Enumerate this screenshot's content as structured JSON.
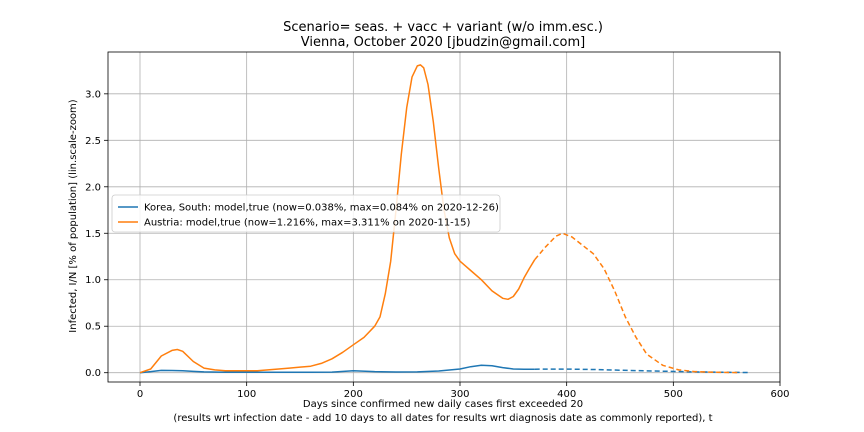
{
  "chart_data": {
    "type": "line",
    "title": "Scenario= seas. + vacc + variant (w/o imm.esc.)",
    "subtitle": "Vienna, October 2020 [jbudzin@gmail.com]",
    "xlabel": "Days since confirmed new daily cases first exceeded 20",
    "xlabel2": "(results wrt infection date - add 10 days to all dates for results wrt diagnosis date as commonly reported), t",
    "ylabel": "Infected, I/N [% of population] (lin.scale-zoom)",
    "xlim": [
      -30,
      600
    ],
    "ylim": [
      -0.1,
      3.45
    ],
    "xticks": [
      0,
      100,
      200,
      300,
      400,
      500,
      600
    ],
    "yticks": [
      0.0,
      0.5,
      1.0,
      1.5,
      2.0,
      2.5,
      3.0
    ],
    "xtick_labels": [
      "0",
      "100",
      "200",
      "300",
      "400",
      "500",
      "600"
    ],
    "ytick_labels": [
      "0.0",
      "0.5",
      "1.0",
      "1.5",
      "2.0",
      "2.5",
      "3.0"
    ],
    "grid": true,
    "legend_position": "center-left",
    "series": [
      {
        "name": "Korea, South: model,true (now=0.038%, max=0.084% on 2020-12-26)",
        "color": "#1f77b4",
        "solid": {
          "x": [
            0,
            10,
            20,
            30,
            40,
            50,
            60,
            80,
            100,
            120,
            140,
            160,
            180,
            200,
            220,
            240,
            260,
            280,
            300,
            310,
            320,
            330,
            340,
            350,
            360,
            370
          ],
          "y": [
            0.0,
            0.012,
            0.025,
            0.024,
            0.02,
            0.014,
            0.009,
            0.005,
            0.004,
            0.004,
            0.004,
            0.005,
            0.006,
            0.022,
            0.012,
            0.008,
            0.009,
            0.018,
            0.04,
            0.065,
            0.08,
            0.075,
            0.055,
            0.04,
            0.038,
            0.038
          ]
        },
        "dashed": {
          "x": [
            370,
            400,
            430,
            460,
            490,
            520,
            550,
            570
          ],
          "y": [
            0.038,
            0.039,
            0.033,
            0.024,
            0.016,
            0.009,
            0.004,
            0.002
          ]
        }
      },
      {
        "name": "Austria: model,true (now=1.216%, max=3.311% on 2020-11-15)",
        "color": "#ff7f0e",
        "solid": {
          "x": [
            0,
            10,
            20,
            30,
            35,
            40,
            50,
            60,
            70,
            80,
            90,
            100,
            110,
            120,
            130,
            140,
            150,
            160,
            170,
            180,
            190,
            200,
            210,
            220,
            225,
            230,
            235,
            240,
            245,
            250,
            255,
            260,
            263,
            266,
            270,
            275,
            280,
            285,
            290,
            295,
            300,
            305,
            310,
            320,
            330,
            340,
            345,
            350,
            355,
            360,
            365,
            370
          ],
          "y": [
            0.0,
            0.04,
            0.18,
            0.24,
            0.25,
            0.23,
            0.12,
            0.05,
            0.03,
            0.02,
            0.02,
            0.02,
            0.02,
            0.03,
            0.04,
            0.05,
            0.06,
            0.07,
            0.1,
            0.15,
            0.22,
            0.3,
            0.38,
            0.5,
            0.6,
            0.85,
            1.2,
            1.75,
            2.35,
            2.85,
            3.18,
            3.3,
            3.311,
            3.28,
            3.1,
            2.7,
            2.2,
            1.75,
            1.45,
            1.28,
            1.2,
            1.15,
            1.1,
            1.0,
            0.88,
            0.8,
            0.79,
            0.82,
            0.9,
            1.02,
            1.12,
            1.216
          ]
        },
        "dashed": {
          "x": [
            370,
            380,
            390,
            396,
            405,
            415,
            425,
            435,
            445,
            455,
            465,
            475,
            490,
            505,
            520,
            540,
            560
          ],
          "y": [
            1.216,
            1.35,
            1.47,
            1.5,
            1.46,
            1.37,
            1.28,
            1.12,
            0.88,
            0.6,
            0.38,
            0.2,
            0.08,
            0.03,
            0.012,
            0.004,
            0.001
          ]
        }
      }
    ]
  }
}
